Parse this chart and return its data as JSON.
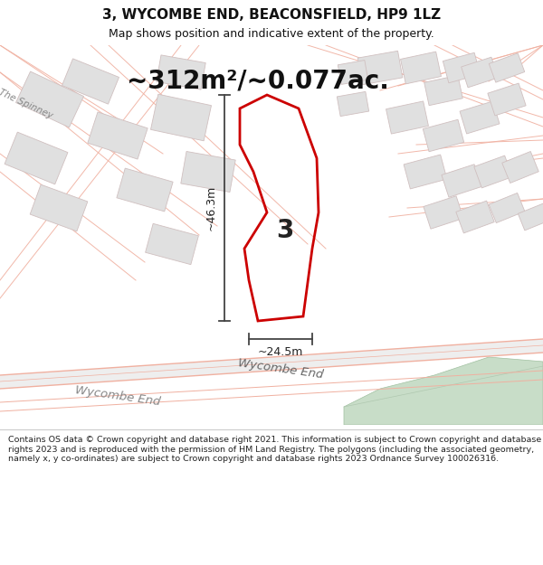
{
  "title": "3, WYCOMBE END, BEACONSFIELD, HP9 1LZ",
  "subtitle": "Map shows position and indicative extent of the property.",
  "area_text": "~312m²/~0.077ac.",
  "dim_vertical": "~46.3m",
  "dim_horizontal": "~24.5m",
  "property_number": "3",
  "road_label": "Wycombe End",
  "road_label2": "The Spinney",
  "footer": "Contains OS data © Crown copyright and database right 2021. This information is subject to Crown copyright and database rights 2023 and is reproduced with the permission of HM Land Registry. The polygons (including the associated geometry, namely x, y co-ordinates) are subject to Crown copyright and database rights 2023 Ordnance Survey 100026316.",
  "bg_color": "#f5f5f5",
  "road_color": "#f0b0a0",
  "building_fill": "#e0e0e0",
  "building_edge": "#d0d0d0",
  "property_color": "#cc0000",
  "dim_line_color": "#444444",
  "green_color": "#c8ddc8",
  "road_fill": "#e8e8e8"
}
